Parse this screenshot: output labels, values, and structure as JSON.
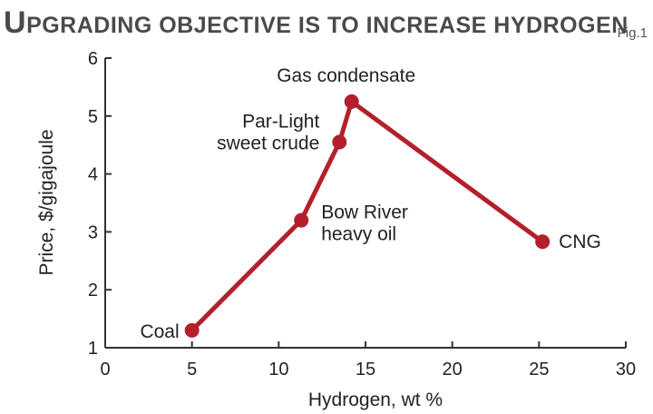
{
  "header": {
    "title_first": "U",
    "title_rest": "PGRADING OBJECTIVE IS TO INCREASE HYDROGEN",
    "fig_label": "Fig.1"
  },
  "colors": {
    "line": "#b3202b",
    "axis": "#333333",
    "title": "#4a4a4a"
  },
  "chart_data": {
    "type": "line",
    "title": "Upgrading objective is to increase hydrogen",
    "xlabel": "Hydrogen, wt %",
    "ylabel": "Price, $/gigajoule",
    "xlim": [
      0,
      30
    ],
    "ylim": [
      1,
      6
    ],
    "xticks": [
      0,
      5,
      10,
      15,
      20,
      25,
      30
    ],
    "yticks": [
      1,
      2,
      3,
      4,
      5,
      6
    ],
    "grid": false,
    "points": [
      {
        "x": 5.0,
        "y": 1.3,
        "label": [
          "Coal"
        ]
      },
      {
        "x": 11.3,
        "y": 3.2,
        "label": [
          "Bow River",
          "heavy oil"
        ]
      },
      {
        "x": 13.5,
        "y": 4.55,
        "label": [
          "Par-Light",
          "sweet crude"
        ]
      },
      {
        "x": 14.2,
        "y": 5.25,
        "label": [
          "Gas condensate"
        ]
      },
      {
        "x": 25.2,
        "y": 2.83,
        "label": [
          "CNG"
        ]
      }
    ]
  }
}
